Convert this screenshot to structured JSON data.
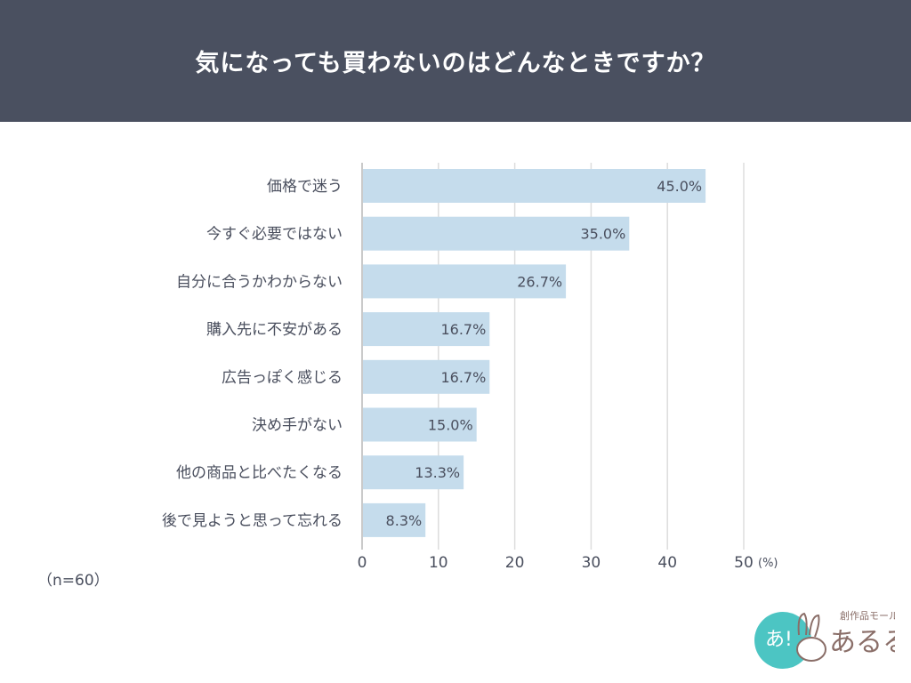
{
  "header": {
    "title": "気になっても買わないのはどんなときですか？"
  },
  "sample_note": "（n=60）",
  "logo": {
    "text": "創作品モール あるる",
    "colors": {
      "circle": "#4cc5c3",
      "text": "#8a6e68"
    }
  },
  "colors": {
    "header_bg": "#4a5060",
    "bar": "#c5dcec",
    "grid": "#dddddd",
    "text": "#4a4f5e"
  },
  "chart_data": {
    "type": "bar",
    "orientation": "horizontal",
    "title": "気になっても買わないのはどんなときですか？",
    "categories": [
      "価格で迷う",
      "今すぐ必要ではない",
      "自分に合うかわからない",
      "購入先に不安がある",
      "広告っぽく感じる",
      "決め手がない",
      "他の商品と比べたくなる",
      "後で見ようと思って忘れる"
    ],
    "values": [
      45.0,
      35.0,
      26.7,
      16.7,
      16.7,
      15.0,
      13.3,
      8.3
    ],
    "data_labels": [
      "45.0%",
      "35.0%",
      "26.7%",
      "16.7%",
      "16.7%",
      "15.0%",
      "13.3%",
      "8.3%"
    ],
    "xlim": [
      0,
      50
    ],
    "xticks": [
      "0",
      "10",
      "20",
      "30",
      "40",
      "50"
    ],
    "xunit": "(%)",
    "grid": true
  }
}
